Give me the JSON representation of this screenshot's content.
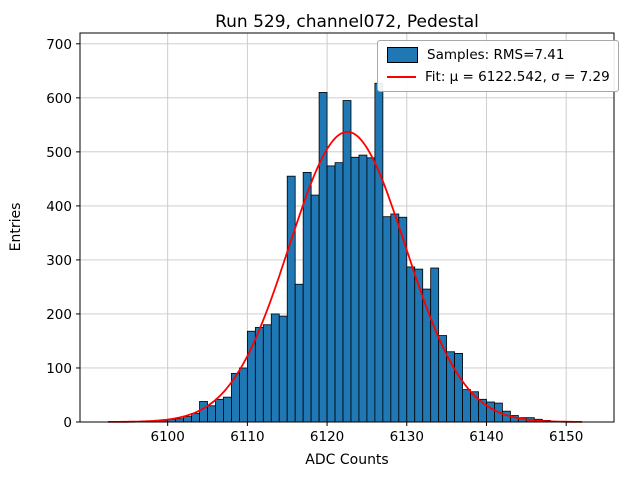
{
  "chart_data": {
    "type": "bar",
    "title": "Run 529, channel072, Pedestal",
    "xlabel": "ADC Counts",
    "ylabel": "Entries",
    "xlim": [
      6089,
      6156
    ],
    "ylim": [
      0,
      720
    ],
    "xticks": [
      6100,
      6110,
      6120,
      6130,
      6140,
      6150
    ],
    "yticks": [
      0,
      100,
      200,
      300,
      400,
      500,
      600,
      700
    ],
    "grid": true,
    "legend_position": "upper right",
    "legend": [
      "Samples: RMS=7.41",
      "Fit: μ = 6122.542, σ = 7.29"
    ],
    "bar_color": "#1f77b4",
    "bar_edge_color": "#000000",
    "fit_color": "#ff0000",
    "grid_color": "#c8c8c8",
    "bins_start": 6097,
    "bin_width": 1,
    "counts": [
      1,
      2,
      3,
      5,
      6,
      10,
      16,
      38,
      30,
      42,
      46,
      90,
      100,
      168,
      175,
      180,
      200,
      196,
      455,
      255,
      462,
      420,
      610,
      474,
      480,
      595,
      490,
      494,
      489,
      627,
      380,
      385,
      379,
      287,
      283,
      246,
      285,
      160,
      130,
      127,
      60,
      56,
      42,
      37,
      35,
      20,
      12,
      8,
      8,
      5,
      3
    ],
    "fit": {
      "mu": 6122.542,
      "sigma": 7.29,
      "amplitude": 537,
      "rms": 7.41
    }
  }
}
